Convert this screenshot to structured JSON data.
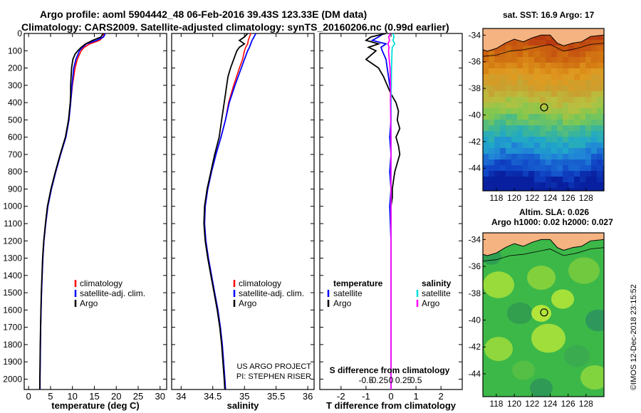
{
  "header": {
    "line1": "Argo profile: aoml 5904442_48 06-Feb-2016 39.43S 123.33E (DM data)",
    "line2": "Climatology: CARS2009. Satellite-adjusted climatology: synTS_20160206.nc (0.99d earlier)"
  },
  "colors": {
    "climatology": "#ff0000",
    "satellite": "#0000ff",
    "argo": "#000000",
    "sal_satellite": "#00dddd",
    "sal_argo": "#ff00ff",
    "land": "#f5b382"
  },
  "credits": {
    "project": "US ARGO PROJECT",
    "pi": "PI: STEPHEN RISER",
    "imos": "©IMOS 12-Dec-2018 23:15:52"
  },
  "chart_data": [
    {
      "type": "line",
      "title": "",
      "xlabel": "temperature (deg C)",
      "ylabel": "",
      "xlim": [
        -1,
        31.5
      ],
      "ylim": [
        2060,
        0
      ],
      "xticks": [
        "0",
        "5",
        "10",
        "15",
        "20",
        "25",
        "30"
      ],
      "yticks": [
        "0",
        "100",
        "200",
        "300",
        "400",
        "500",
        "600",
        "700",
        "800",
        "900",
        "1000",
        "1100",
        "1200",
        "1300",
        "1400",
        "1500",
        "1600",
        "1700",
        "1800",
        "1900",
        "2000"
      ],
      "legend": [
        "climatology",
        "satellite-adj. clim.",
        "Argo"
      ],
      "series": [
        {
          "name": "climatology",
          "color": "#ff0000",
          "depth": [
            0,
            20,
            40,
            60,
            80,
            100,
            150,
            200,
            300,
            400,
            500,
            600,
            700,
            800,
            900,
            1000,
            1100,
            1200,
            1300,
            1400,
            1500,
            1600,
            1700,
            1800,
            1900,
            2000,
            2060
          ],
          "values": [
            17.2,
            17.0,
            16.2,
            14.0,
            12.7,
            12.0,
            11.1,
            10.6,
            10.0,
            9.6,
            9.2,
            8.5,
            7.3,
            6.2,
            5.2,
            4.4,
            3.9,
            3.5,
            3.25,
            3.1,
            2.95,
            2.85,
            2.75,
            2.7,
            2.65,
            2.6,
            2.6
          ]
        },
        {
          "name": "satellite-adj. clim.",
          "color": "#0000ff",
          "depth": [
            0,
            20,
            40,
            60,
            80,
            100,
            150,
            200,
            300,
            400,
            500,
            600,
            700,
            800,
            900,
            1000,
            1100,
            1200,
            1300,
            1400,
            1500,
            1600,
            1700,
            1800,
            1900,
            2000,
            2060
          ],
          "values": [
            17.5,
            17.1,
            15.5,
            13.2,
            12.3,
            11.6,
            10.8,
            10.3,
            9.9,
            9.6,
            9.2,
            8.5,
            7.3,
            6.2,
            5.2,
            4.4,
            3.9,
            3.5,
            3.25,
            3.1,
            2.95,
            2.85,
            2.75,
            2.7,
            2.65,
            2.6,
            2.6
          ]
        },
        {
          "name": "Argo",
          "color": "#000000",
          "depth": [
            0,
            20,
            40,
            60,
            80,
            100,
            120,
            150,
            200,
            250,
            300,
            350,
            400,
            500,
            600,
            700,
            800,
            900,
            1000,
            1100,
            1200,
            1300,
            1400,
            1500,
            1600,
            1700,
            1800,
            1900,
            2000,
            2060
          ],
          "values": [
            17.0,
            16.5,
            14.6,
            13.0,
            12.0,
            11.2,
            10.6,
            10.1,
            9.8,
            9.7,
            9.6,
            9.6,
            9.5,
            9.1,
            8.4,
            7.2,
            6.1,
            5.1,
            4.3,
            3.85,
            3.45,
            3.2,
            3.05,
            2.9,
            2.8,
            2.72,
            2.66,
            2.6,
            2.56,
            2.55
          ]
        }
      ]
    },
    {
      "type": "line",
      "xlabel": "salinity",
      "xlim": [
        33.85,
        36.1
      ],
      "ylim": [
        2060,
        0
      ],
      "xticks": [
        "34",
        "34.5",
        "35",
        "35.5",
        "36"
      ],
      "legend": [
        "climatology",
        "satellite-adj. clim.",
        "Argo"
      ],
      "series": [
        {
          "name": "climatology",
          "color": "#ff0000",
          "depth": [
            0,
            20,
            40,
            60,
            80,
            100,
            150,
            200,
            300,
            400,
            500,
            600,
            700,
            800,
            900,
            1000,
            1100,
            1200,
            1300,
            1400,
            1500,
            1600,
            1700,
            1800,
            1900,
            2000,
            2060
          ],
          "values": [
            35.1,
            35.08,
            35.06,
            35.05,
            35.02,
            35.0,
            34.97,
            34.92,
            34.83,
            34.75,
            34.7,
            34.63,
            34.55,
            34.48,
            34.42,
            34.38,
            34.37,
            34.39,
            34.43,
            34.48,
            34.53,
            34.58,
            34.62,
            34.65,
            34.67,
            34.69,
            34.7
          ]
        },
        {
          "name": "satellite-adj. clim.",
          "color": "#0000ff",
          "depth": [
            0,
            20,
            40,
            60,
            80,
            100,
            150,
            200,
            300,
            400,
            500,
            600,
            700,
            800,
            900,
            1000,
            1100,
            1200,
            1300,
            1400,
            1500,
            1600,
            1700,
            1800,
            1900,
            2000,
            2060
          ],
          "values": [
            35.18,
            35.15,
            35.12,
            35.1,
            35.08,
            35.05,
            35.0,
            34.95,
            34.85,
            34.76,
            34.7,
            34.63,
            34.55,
            34.48,
            34.42,
            34.38,
            34.37,
            34.39,
            34.43,
            34.48,
            34.53,
            34.58,
            34.62,
            34.65,
            34.67,
            34.69,
            34.7
          ]
        },
        {
          "name": "Argo",
          "color": "#000000",
          "depth": [
            0,
            20,
            40,
            60,
            80,
            100,
            120,
            150,
            200,
            250,
            300,
            350,
            400,
            500,
            600,
            700,
            800,
            900,
            1000,
            1100,
            1200,
            1300,
            1400,
            1500,
            1600,
            1700,
            1800,
            1900,
            2000,
            2060
          ],
          "values": [
            35.05,
            35.0,
            34.92,
            35.0,
            34.92,
            34.88,
            34.86,
            34.83,
            34.78,
            34.74,
            34.72,
            34.7,
            34.68,
            34.64,
            34.6,
            34.53,
            34.47,
            34.41,
            34.37,
            34.36,
            34.38,
            34.42,
            34.47,
            34.52,
            34.57,
            34.61,
            34.64,
            34.66,
            34.68,
            34.69
          ]
        }
      ]
    },
    {
      "type": "line",
      "xlabel": "T difference from climatology",
      "xlabel2": "S difference from climatology",
      "xlim": [
        -2.85,
        2.85
      ],
      "ylim": [
        2060,
        0
      ],
      "xticks": [
        "-2",
        "-1",
        "0",
        "1",
        "2"
      ],
      "xticks2": [
        "-0.5",
        "-0.25",
        "0",
        "0.25",
        "0.5"
      ],
      "legend_left": [
        "temperature",
        "satellite",
        "Argo"
      ],
      "legend_right": [
        "salinity",
        "satellite",
        "Argo"
      ],
      "series": [
        {
          "name": "temperature satellite",
          "color": "#0000ff",
          "depth": [
            0,
            20,
            40,
            60,
            80,
            100,
            150,
            200,
            250,
            300,
            350,
            400,
            500,
            600,
            700,
            800,
            900,
            1000,
            1200,
            1400,
            1600,
            1800,
            2000,
            2060
          ],
          "values": [
            -0.3,
            -0.5,
            -0.75,
            -0.2,
            -0.4,
            -0.35,
            -0.2,
            -0.15,
            -0.1,
            -0.05,
            0.0,
            0.0,
            0.0,
            -0.05,
            0.0,
            -0.05,
            0.0,
            -0.05,
            0.0,
            0.0,
            0.0,
            0.0,
            0.0,
            0.0
          ]
        },
        {
          "name": "temperature Argo",
          "color": "#000000",
          "depth": [
            0,
            20,
            40,
            60,
            80,
            100,
            150,
            200,
            250,
            300,
            350,
            400,
            450,
            500,
            550,
            600,
            650,
            700,
            750,
            800,
            850,
            900,
            950,
            1000,
            1200,
            1400,
            1600,
            1800,
            2000,
            2060
          ],
          "values": [
            -0.2,
            -0.8,
            -1.0,
            -0.5,
            -0.9,
            -0.6,
            -1.0,
            -0.5,
            -0.3,
            -0.15,
            0.0,
            0.2,
            0.3,
            0.25,
            0.35,
            0.2,
            0.3,
            0.35,
            0.25,
            0.15,
            0.1,
            0.05,
            0.05,
            0.0,
            0.0,
            0.0,
            0.0,
            0.0,
            0.0,
            0.0
          ]
        },
        {
          "name": "salinity satellite",
          "color": "#00dddd",
          "depth": [
            0,
            20,
            40,
            60,
            80,
            100,
            150,
            200,
            300,
            400,
            500,
            600,
            800,
            1000,
            1200,
            1400,
            1600,
            1800,
            2000,
            2060
          ],
          "values": [
            0.08,
            0.12,
            0.08,
            0.15,
            0.05,
            0.04,
            0.03,
            0.02,
            0.01,
            0.0,
            0.0,
            0.0,
            0.0,
            0.0,
            0.0,
            0.0,
            0.0,
            0.0,
            0.0,
            0.0
          ]
        },
        {
          "name": "salinity Argo",
          "color": "#ff00ff",
          "depth": [
            0,
            20,
            40,
            60,
            80,
            100,
            150,
            200,
            300,
            400,
            500,
            600,
            800,
            1000,
            1200,
            1400,
            1600,
            1800,
            2000,
            2060
          ],
          "values": [
            -0.03,
            -0.09,
            -0.06,
            -0.12,
            -0.08,
            -0.1,
            -0.07,
            -0.04,
            -0.02,
            -0.02,
            -0.01,
            0.0,
            0.0,
            0.0,
            0.0,
            0.0,
            0.0,
            0.0,
            0.0,
            0.0
          ]
        }
      ]
    },
    {
      "type": "heatmap",
      "title": "sat. SST: 16.9 Argo: 17",
      "xlim": [
        116.5,
        130
      ],
      "ylim": [
        -45.7,
        -33.5
      ],
      "xticks": [
        "118",
        "120",
        "122",
        "124",
        "126",
        "128"
      ],
      "yticks": [
        "-34",
        "-36",
        "-38",
        "-40",
        "-42",
        "-44"
      ],
      "profile_location": [
        123.33,
        -39.43
      ],
      "row_lats": [
        -34,
        -35,
        -36,
        -37,
        -38,
        -39,
        -40,
        -41,
        -42,
        -43,
        -44,
        -45
      ],
      "row_colors": [
        "#b83a10",
        "#c85a10",
        "#d47a12",
        "#e09a20",
        "#c8a030",
        "#b8c040",
        "#80c850",
        "#40b890",
        "#20a8c8",
        "#2080d8",
        "#1048c8",
        "#0820a0"
      ]
    },
    {
      "type": "heatmap",
      "title": "Altim. SLA: 0.026",
      "subtitle": "Argo h1000: 0.02 h2000: 0.027",
      "xlim": [
        116.5,
        130
      ],
      "ylim": [
        -45.7,
        -33.5
      ],
      "xticks": [
        "118",
        "120",
        "122",
        "124",
        "126",
        "128"
      ],
      "yticks": [
        "-34",
        "-36",
        "-38",
        "-40",
        "-42",
        "-44"
      ],
      "profile_location": [
        123.33,
        -39.43
      ]
    }
  ]
}
